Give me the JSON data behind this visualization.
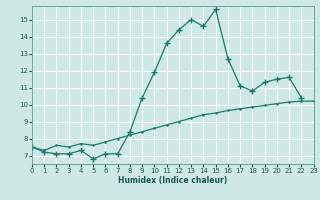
{
  "xlabel": "Humidex (Indice chaleur)",
  "ylabel": "",
  "bg_color": "#cde8e5",
  "grid_color": "#ffffff",
  "line_color": "#1a7a6e",
  "x_upper_line": [
    0,
    1,
    2,
    3,
    4,
    5,
    6,
    7,
    8,
    9,
    10,
    11,
    12,
    13,
    14,
    15,
    16,
    17,
    18,
    19,
    20,
    21,
    22
  ],
  "y_upper_line": [
    7.5,
    7.2,
    7.1,
    7.1,
    7.3,
    6.8,
    7.1,
    7.1,
    8.4,
    10.4,
    11.9,
    13.6,
    14.4,
    15.0,
    14.6,
    15.6,
    12.7,
    11.1,
    10.8,
    11.3,
    11.5,
    11.6,
    10.4
  ],
  "x_lower_line": [
    0,
    1,
    2,
    3,
    4,
    5,
    6,
    7,
    8,
    9,
    10,
    11,
    12,
    13,
    14,
    15,
    16,
    17,
    18,
    19,
    20,
    21,
    22,
    23
  ],
  "y_lower_line": [
    7.5,
    7.3,
    7.6,
    7.5,
    7.7,
    7.6,
    7.8,
    8.0,
    8.2,
    8.4,
    8.6,
    8.8,
    9.0,
    9.2,
    9.4,
    9.5,
    9.65,
    9.75,
    9.85,
    9.95,
    10.05,
    10.15,
    10.2,
    10.2
  ],
  "ylim": [
    6.5,
    15.8
  ],
  "xlim": [
    0,
    23
  ],
  "yticks": [
    7,
    8,
    9,
    10,
    11,
    12,
    13,
    14,
    15
  ],
  "xticks": [
    0,
    1,
    2,
    3,
    4,
    5,
    6,
    7,
    8,
    9,
    10,
    11,
    12,
    13,
    14,
    15,
    16,
    17,
    18,
    19,
    20,
    21,
    22,
    23
  ]
}
